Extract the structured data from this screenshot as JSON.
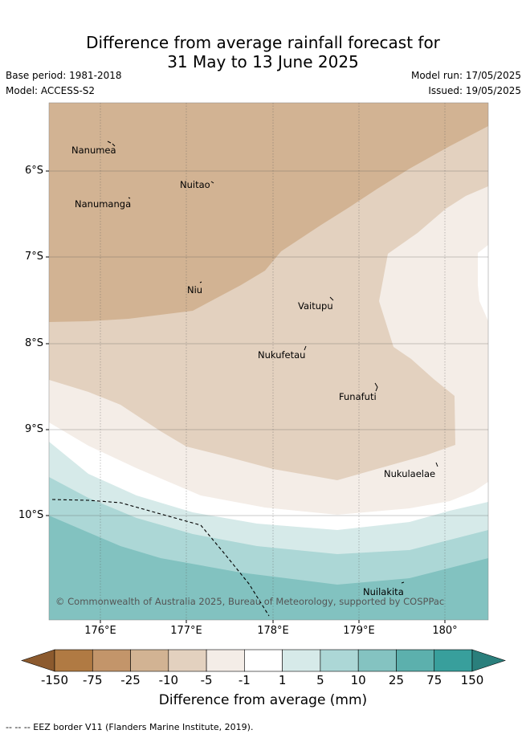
{
  "title_line1": "Difference from average rainfall forecast for",
  "title_line2": "31 May to 13 June 2025",
  "base_period": "Base period: 1981-2018",
  "model": "Model: ACCESS-S2",
  "model_run": "Model run: 17/05/2025",
  "issued": "Issued: 19/05/2025",
  "lat_labels": [
    "6°S",
    "7°S",
    "8°S",
    "9°S",
    "10°S"
  ],
  "lon_labels": [
    "176°E",
    "177°E",
    "178°E",
    "179°E",
    "180°"
  ],
  "islands": [
    "Nanumea",
    "Nuitao",
    "Nanumanga",
    "Niu",
    "Vaitupu",
    "Nukufetau",
    "Funafuti",
    "Nukulaelae",
    "Nuilakita"
  ],
  "copyright": "© Commonwealth of Australia 2025, Bureau of Meteorology, supported by COSPPac",
  "colorbar": {
    "ticks": [
      "-150",
      "-75",
      "-25",
      "-10",
      "-5",
      "-1",
      "1",
      "5",
      "10",
      "25",
      "75",
      "150"
    ],
    "colors": [
      "#8c5a2e",
      "#b07a43",
      "#c3956a",
      "#d2b393",
      "#e3d1bf",
      "#f4ede7",
      "#ffffff",
      "#d6eae9",
      "#acd7d6",
      "#84c3c1",
      "#5cb0ad",
      "#389f9c",
      "#2a7f7c"
    ],
    "title": "Difference from average (mm)"
  },
  "footnote": "-- -- -- EEZ border V11 (Flanders Marine Institute, 2019)."
}
